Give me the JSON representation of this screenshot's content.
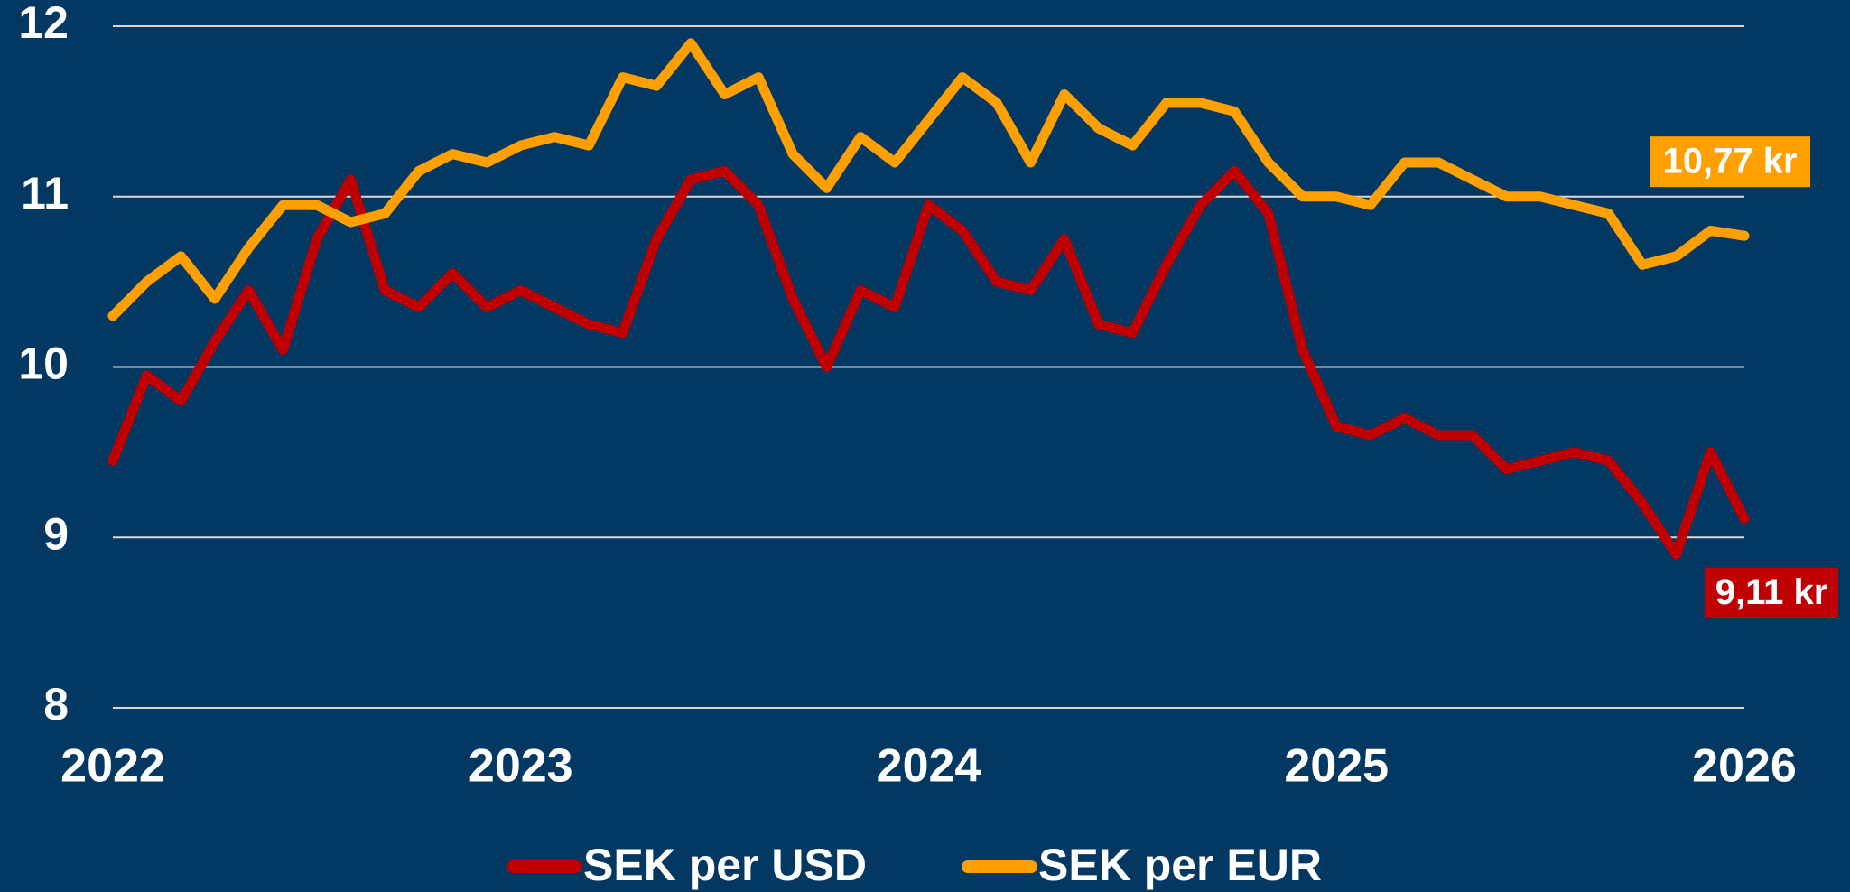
{
  "chart_data": {
    "type": "line",
    "x": [
      2022,
      2022.083,
      2022.167,
      2022.25,
      2022.333,
      2022.417,
      2022.5,
      2022.583,
      2022.667,
      2022.75,
      2022.833,
      2022.917,
      2023,
      2023.083,
      2023.167,
      2023.25,
      2023.333,
      2023.417,
      2023.5,
      2023.583,
      2023.667,
      2023.75,
      2023.833,
      2023.917,
      2024,
      2024.083,
      2024.167,
      2024.25,
      2024.333,
      2024.417,
      2024.5,
      2024.583,
      2024.667,
      2024.75,
      2024.833,
      2024.917,
      2025,
      2025.083,
      2025.167,
      2025.25,
      2025.333,
      2025.417,
      2025.5,
      2025.583,
      2025.667,
      2025.75,
      2025.833,
      2025.917,
      2026
    ],
    "series": [
      {
        "name": "SEK per USD",
        "color": "#c00000",
        "end_label": "9,11 kr",
        "values": [
          9.45,
          9.95,
          9.8,
          10.15,
          10.45,
          10.1,
          10.75,
          11.1,
          10.45,
          10.35,
          10.55,
          10.35,
          10.45,
          10.35,
          10.25,
          10.2,
          10.75,
          11.1,
          11.15,
          10.95,
          10.4,
          10.0,
          10.45,
          10.35,
          10.95,
          10.8,
          10.5,
          10.45,
          10.75,
          10.25,
          10.2,
          10.6,
          10.95,
          11.15,
          10.9,
          10.1,
          9.65,
          9.6,
          9.7,
          9.6,
          9.6,
          9.4,
          9.45,
          9.5,
          9.45,
          9.2,
          8.9,
          9.5,
          9.11
        ]
      },
      {
        "name": "SEK per EUR",
        "color": "#ffa000",
        "end_label": "10,77 kr",
        "values": [
          10.3,
          10.5,
          10.65,
          10.4,
          10.7,
          10.95,
          10.95,
          10.85,
          10.9,
          11.15,
          11.25,
          11.2,
          11.3,
          11.35,
          11.3,
          11.7,
          11.65,
          11.9,
          11.6,
          11.7,
          11.25,
          11.05,
          11.35,
          11.2,
          11.45,
          11.7,
          11.55,
          11.2,
          11.6,
          11.4,
          11.3,
          11.55,
          11.55,
          11.5,
          11.2,
          11.0,
          11.0,
          10.95,
          11.2,
          11.2,
          11.1,
          11.0,
          11.0,
          10.95,
          10.9,
          10.6,
          10.65,
          10.8,
          10.77
        ]
      }
    ],
    "xlim": [
      2022,
      2026
    ],
    "xticks": [
      2022,
      2023,
      2024,
      2025,
      2026
    ],
    "ylim": [
      8,
      12
    ],
    "yticks": [
      8,
      9,
      10,
      11,
      12
    ],
    "grid": true,
    "legend": "bottom"
  }
}
